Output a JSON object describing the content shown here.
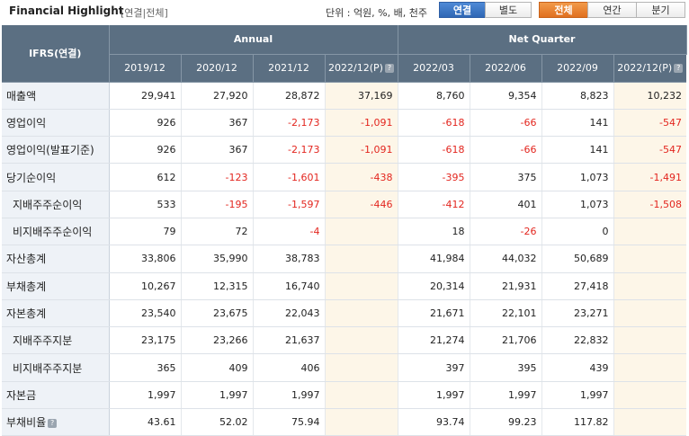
{
  "header": {
    "title": "Financial Highlight",
    "scope": "[연결|전체]",
    "unit": "단위 : 억원, %, 배, 천주",
    "basis_buttons": [
      {
        "label": "연결",
        "active": true
      },
      {
        "label": "별도",
        "active": false
      }
    ],
    "period_buttons": [
      {
        "label": "전체",
        "active": true
      },
      {
        "label": "연간",
        "active": false
      },
      {
        "label": "분기",
        "active": false
      }
    ]
  },
  "table": {
    "corner": "IFRS(연결)",
    "group_annual": "Annual",
    "group_quarter": "Net Quarter",
    "columns": [
      "2019/12",
      "2020/12",
      "2021/12",
      "2022/12(P)",
      "2022/03",
      "2022/06",
      "2022/09",
      "2022/12(P)"
    ],
    "rows": [
      {
        "label": "매출액",
        "values": [
          "29,941",
          "27,920",
          "28,872",
          "37,169",
          "8,760",
          "9,354",
          "8,823",
          "10,232"
        ]
      },
      {
        "label": "영업이익",
        "values": [
          "926",
          "367",
          "-2,173",
          "-1,091",
          "-618",
          "-66",
          "141",
          "-547"
        ]
      },
      {
        "label": "영업이익(발표기준)",
        "values": [
          "926",
          "367",
          "-2,173",
          "-1,091",
          "-618",
          "-66",
          "141",
          "-547"
        ]
      },
      {
        "label": "당기순이익",
        "values": [
          "612",
          "-123",
          "-1,601",
          "-438",
          "-395",
          "375",
          "1,073",
          "-1,491"
        ]
      },
      {
        "label": "지배주주순이익",
        "values": [
          "533",
          "-195",
          "-1,597",
          "-446",
          "-412",
          "401",
          "1,073",
          "-1,508"
        ]
      },
      {
        "label": "비지배주주순이익",
        "values": [
          "79",
          "72",
          "-4",
          "",
          "18",
          "-26",
          "0",
          ""
        ]
      },
      {
        "label": "자산총계",
        "values": [
          "33,806",
          "35,990",
          "38,783",
          "",
          "41,984",
          "44,032",
          "50,689",
          ""
        ]
      },
      {
        "label": "부채총계",
        "values": [
          "10,267",
          "12,315",
          "16,740",
          "",
          "20,314",
          "21,931",
          "27,418",
          ""
        ]
      },
      {
        "label": "자본총계",
        "values": [
          "23,540",
          "23,675",
          "22,043",
          "",
          "21,671",
          "22,101",
          "23,271",
          ""
        ]
      },
      {
        "label": "지배주주지분",
        "values": [
          "23,175",
          "23,266",
          "21,637",
          "",
          "21,274",
          "21,706",
          "22,832",
          ""
        ]
      },
      {
        "label": "비지배주주지분",
        "values": [
          "365",
          "409",
          "406",
          "",
          "397",
          "395",
          "439",
          ""
        ]
      },
      {
        "label": "자본금",
        "values": [
          "1,997",
          "1,997",
          "1,997",
          "",
          "1,997",
          "1,997",
          "1,997",
          ""
        ]
      },
      {
        "label": "부채비율",
        "values": [
          "43.61",
          "52.02",
          "75.94",
          "",
          "93.74",
          "99.23",
          "117.82",
          ""
        ]
      }
    ]
  }
}
